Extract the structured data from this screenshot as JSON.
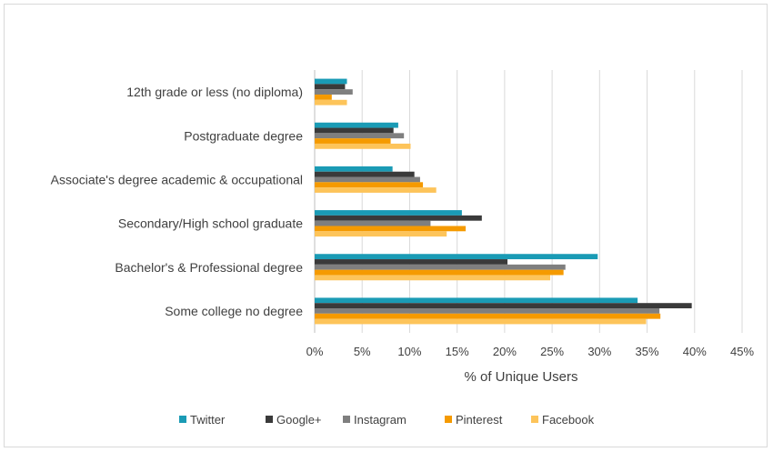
{
  "chart_data": {
    "type": "bar",
    "orientation": "horizontal",
    "categories": [
      "12th grade or less (no diploma)",
      "Postgraduate degree",
      "Associate's degree academic & occupational",
      "Secondary/High school graduate",
      "Bachelor's & Professional degree",
      "Some college no degree"
    ],
    "series": [
      {
        "name": "Twitter",
        "color": "#1a9bb5",
        "values": [
          3.4,
          8.8,
          8.2,
          15.5,
          29.8,
          34.0
        ]
      },
      {
        "name": "Google+",
        "color": "#3a3a3a",
        "values": [
          3.2,
          8.3,
          10.5,
          17.6,
          20.3,
          39.7
        ]
      },
      {
        "name": "Instagram",
        "color": "#7f7f7f",
        "values": [
          4.0,
          9.4,
          11.1,
          12.2,
          26.4,
          36.3
        ]
      },
      {
        "name": "Pinterest",
        "color": "#f59a00",
        "values": [
          1.8,
          8.0,
          11.4,
          15.9,
          26.2,
          36.4
        ]
      },
      {
        "name": "Facebook",
        "color": "#fdc45a",
        "values": [
          3.4,
          10.1,
          12.8,
          13.9,
          24.8,
          34.9
        ]
      }
    ],
    "xlim": [
      0,
      45
    ],
    "xticks": [
      "0%",
      "5%",
      "10%",
      "15%",
      "20%",
      "25%",
      "30%",
      "35%",
      "40%",
      "45%"
    ],
    "xlabel": "% of Unique Users",
    "ylabel": "",
    "title": "",
    "grid": "vertical",
    "legend_position": "bottom"
  }
}
